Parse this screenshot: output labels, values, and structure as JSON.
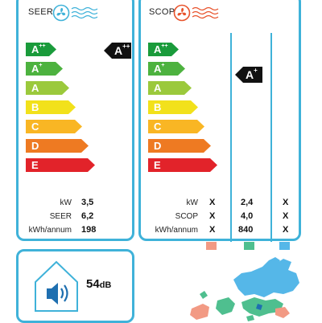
{
  "seer": {
    "title": "SEER",
    "scale": [
      {
        "base": "A",
        "plus": "++",
        "color": "#1a9b3b"
      },
      {
        "base": "A",
        "plus": "+",
        "color": "#4db23f"
      },
      {
        "base": "A",
        "plus": "",
        "color": "#9bc93c"
      },
      {
        "base": "B",
        "plus": "",
        "color": "#f2e11b"
      },
      {
        "base": "C",
        "plus": "",
        "color": "#f9b624"
      },
      {
        "base": "D",
        "plus": "",
        "color": "#ee7a22"
      },
      {
        "base": "E",
        "plus": "",
        "color": "#e2232a"
      }
    ],
    "rating": {
      "base": "A",
      "plus": "++"
    },
    "rows": [
      {
        "label": "kW",
        "value": "3,5"
      },
      {
        "label": "SEER",
        "value": "6,2"
      },
      {
        "label": "kWh/annum",
        "value": "198"
      }
    ]
  },
  "scop": {
    "title": "SCOP",
    "rating": {
      "base": "A",
      "plus": "+"
    },
    "rows": [
      {
        "label": "kW",
        "values": [
          "X",
          "2,4",
          "X"
        ]
      },
      {
        "label": "SCOP",
        "values": [
          "X",
          "4,0",
          "X"
        ]
      },
      {
        "label": "kWh/annum",
        "values": [
          "X",
          "840",
          "X"
        ]
      }
    ],
    "zone_colors": [
      "#f29a84",
      "#4fbf8f",
      "#55b7e8"
    ]
  },
  "sound": {
    "value": "54",
    "unit": "dB"
  },
  "colors": {
    "border": "#3fb2d9",
    "fan_blue": "#3fb2d9",
    "fan_red": "#e8532c"
  }
}
